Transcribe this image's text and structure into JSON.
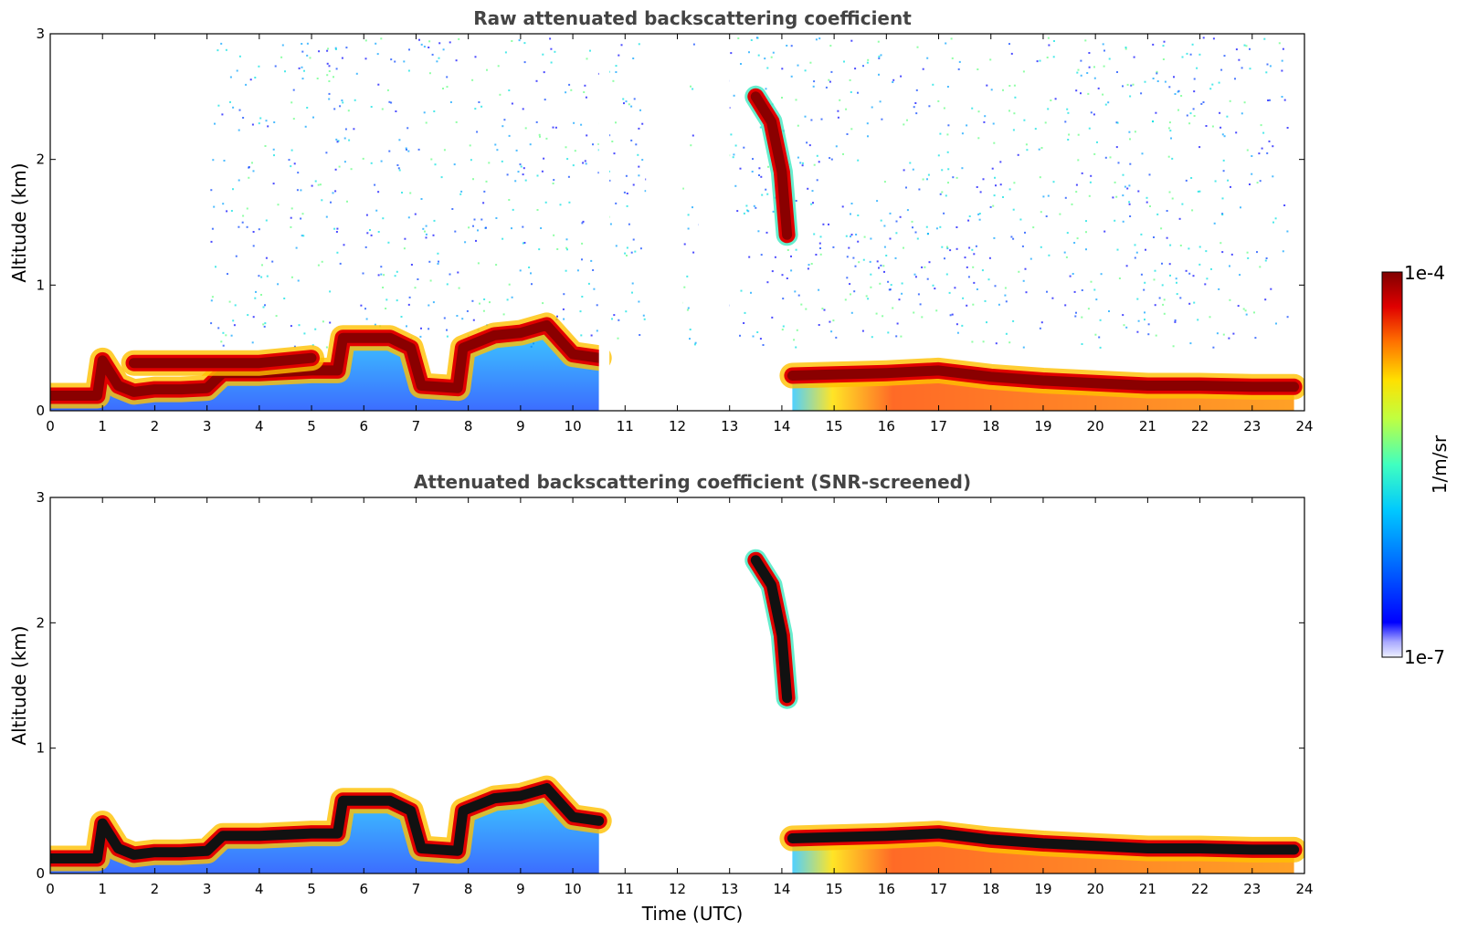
{
  "chart_data": [
    {
      "type": "heatmap",
      "title": "Raw attenuated backscattering coefficient",
      "xlabel": "",
      "ylabel": "Altitude (km)",
      "xlim": [
        0,
        24
      ],
      "ylim": [
        0,
        3
      ],
      "x_ticks": [
        "0",
        "1",
        "2",
        "3",
        "4",
        "5",
        "6",
        "7",
        "8",
        "9",
        "10",
        "11",
        "12",
        "13",
        "14",
        "15",
        "16",
        "17",
        "18",
        "19",
        "20",
        "21",
        "22",
        "23",
        "24"
      ],
      "y_ticks": [
        "0",
        "1",
        "2",
        "3"
      ],
      "grid": false,
      "layers": [
        {
          "feature": "boundary layer top (high backscatter)",
          "points": [
            [
              0,
              0.12
            ],
            [
              0.9,
              0.12
            ],
            [
              1.0,
              0.4
            ],
            [
              1.3,
              0.2
            ],
            [
              1.6,
              0.15
            ],
            [
              2.0,
              0.17
            ],
            [
              2.5,
              0.17
            ],
            [
              3.0,
              0.18
            ],
            [
              3.3,
              0.3
            ],
            [
              4.0,
              0.3
            ],
            [
              5.0,
              0.32
            ],
            [
              5.5,
              0.32
            ],
            [
              5.6,
              0.58
            ],
            [
              6.5,
              0.58
            ],
            [
              6.9,
              0.5
            ],
            [
              7.1,
              0.2
            ],
            [
              7.8,
              0.18
            ],
            [
              7.9,
              0.5
            ],
            [
              8.5,
              0.6
            ],
            [
              9.0,
              0.62
            ],
            [
              9.5,
              0.68
            ],
            [
              10.0,
              0.45
            ],
            [
              10.5,
              0.42
            ]
          ]
        },
        {
          "feature": "aerosol/residual layer",
          "points": [
            [
              1.6,
              0.38
            ],
            [
              3.0,
              0.38
            ],
            [
              4.0,
              0.38
            ],
            [
              5.0,
              0.42
            ]
          ]
        },
        {
          "feature": "cloud layer",
          "points": [
            [
              13.5,
              2.5
            ],
            [
              13.8,
              2.3
            ],
            [
              14.0,
              1.9
            ],
            [
              14.1,
              1.4
            ]
          ]
        },
        {
          "feature": "afternoon boundary layer",
          "points": [
            [
              14.2,
              0.28
            ],
            [
              16.0,
              0.3
            ],
            [
              17.0,
              0.32
            ],
            [
              18.0,
              0.27
            ],
            [
              19.0,
              0.24
            ],
            [
              20.0,
              0.22
            ],
            [
              21.0,
              0.2
            ],
            [
              22.0,
              0.2
            ],
            [
              23.0,
              0.19
            ],
            [
              23.8,
              0.19
            ]
          ]
        }
      ],
      "gaps_utc": [
        [
          10.5,
          10.7
        ],
        [
          11.4,
          12.1
        ],
        [
          12.4,
          13.0
        ]
      ]
    },
    {
      "type": "heatmap",
      "title": "Attenuated backscattering coefficient (SNR-screened)",
      "xlabel": "Time (UTC)",
      "ylabel": "Altitude (km)",
      "xlim": [
        0,
        24
      ],
      "ylim": [
        0,
        3
      ],
      "x_ticks": [
        "0",
        "1",
        "2",
        "3",
        "4",
        "5",
        "6",
        "7",
        "8",
        "9",
        "10",
        "11",
        "12",
        "13",
        "14",
        "15",
        "16",
        "17",
        "18",
        "19",
        "20",
        "21",
        "22",
        "23",
        "24"
      ],
      "y_ticks": [
        "0",
        "1",
        "2",
        "3"
      ],
      "grid": false,
      "layers": [
        {
          "feature": "boundary layer top (high backscatter)",
          "points": [
            [
              0,
              0.12
            ],
            [
              0.9,
              0.12
            ],
            [
              1.0,
              0.4
            ],
            [
              1.3,
              0.2
            ],
            [
              1.6,
              0.15
            ],
            [
              2.0,
              0.17
            ],
            [
              2.5,
              0.17
            ],
            [
              3.0,
              0.18
            ],
            [
              3.3,
              0.3
            ],
            [
              4.0,
              0.3
            ],
            [
              5.0,
              0.32
            ],
            [
              5.5,
              0.32
            ],
            [
              5.6,
              0.58
            ],
            [
              6.5,
              0.58
            ],
            [
              6.9,
              0.5
            ],
            [
              7.1,
              0.2
            ],
            [
              7.8,
              0.18
            ],
            [
              7.9,
              0.5
            ],
            [
              8.5,
              0.6
            ],
            [
              9.0,
              0.62
            ],
            [
              9.5,
              0.68
            ],
            [
              10.0,
              0.45
            ],
            [
              10.5,
              0.42
            ]
          ]
        },
        {
          "feature": "cloud layer",
          "points": [
            [
              13.5,
              2.5
            ],
            [
              13.8,
              2.3
            ],
            [
              14.0,
              1.9
            ],
            [
              14.1,
              1.4
            ]
          ]
        },
        {
          "feature": "afternoon boundary layer",
          "points": [
            [
              14.2,
              0.28
            ],
            [
              16.0,
              0.3
            ],
            [
              17.0,
              0.32
            ],
            [
              18.0,
              0.27
            ],
            [
              19.0,
              0.24
            ],
            [
              20.0,
              0.22
            ],
            [
              21.0,
              0.2
            ],
            [
              22.0,
              0.2
            ],
            [
              23.0,
              0.19
            ],
            [
              23.8,
              0.19
            ]
          ]
        }
      ]
    }
  ],
  "colorbar": {
    "label": "1/m/sr",
    "max_label": "1e-4",
    "min_label": "1e-7",
    "scale": "log",
    "colormap": "jet",
    "colors": [
      "#e8e8ff",
      "#0000ff",
      "#00a0ff",
      "#00e0e0",
      "#60ff80",
      "#ffff00",
      "#ff8000",
      "#ff0000",
      "#800000"
    ]
  }
}
